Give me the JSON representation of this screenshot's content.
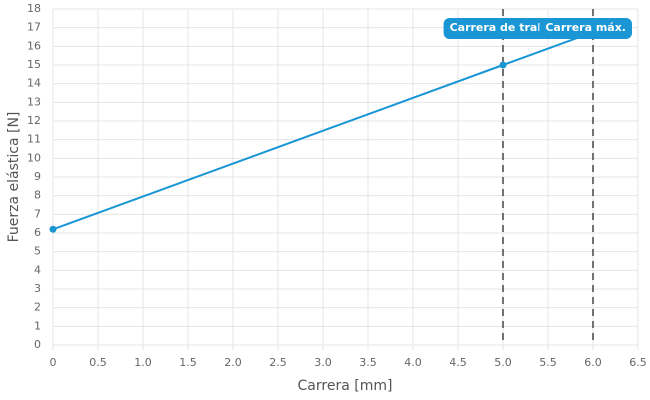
{
  "chart_data": {
    "type": "line",
    "x_label": "Carrera [mm]",
    "y_label": "Fuerza elástica [N]",
    "x": [
      0,
      5,
      6
    ],
    "values": [
      6.2,
      15,
      16.76
    ],
    "color": "#1a96d4",
    "xlim": [
      0,
      6.5
    ],
    "ylim": [
      0,
      18
    ],
    "xticks": [
      0,
      0.5,
      {
        "value": 1,
        "label": "1.0"
      },
      1.5,
      {
        "value": 2,
        "label": "2.0"
      },
      2.5,
      {
        "value": 3,
        "label": "3.0"
      },
      3.5,
      {
        "value": 4,
        "label": "4.0"
      },
      4.5,
      {
        "value": 5,
        "label": "5.0"
      },
      5.5,
      {
        "value": 6,
        "label": "6.0"
      },
      6.5
    ],
    "yticks": [
      0,
      1,
      2,
      3,
      4,
      5,
      6,
      7,
      8,
      9,
      10,
      11,
      12,
      13,
      14,
      15,
      16,
      17,
      18
    ],
    "grid": true,
    "annotations": [
      {
        "x": 5,
        "label": "Carrera de trabaj"
      },
      {
        "x": 6,
        "label": "Carrera máx."
      }
    ],
    "annotation_color": "#1a96d4"
  }
}
